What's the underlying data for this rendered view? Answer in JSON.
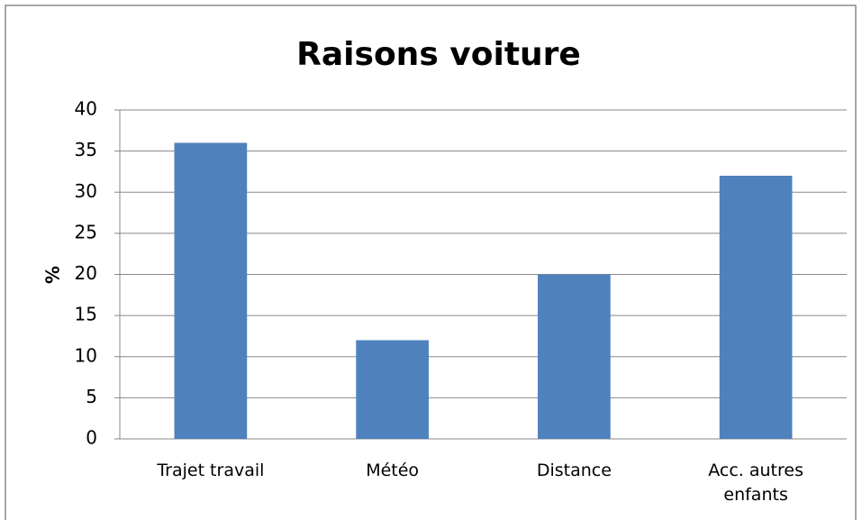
{
  "chart_data": {
    "type": "bar",
    "title": "Raisons voiture",
    "y_label": "%",
    "categories": [
      "Trajet travail",
      "Météo",
      "Distance",
      "Acc. autres enfants"
    ],
    "values": [
      36,
      12,
      20,
      32
    ],
    "color": "#4f81bd",
    "ylim": [
      0,
      40
    ],
    "yticks": [
      0,
      5,
      10,
      15,
      20,
      25,
      30,
      35,
      40
    ],
    "grid": true
  }
}
